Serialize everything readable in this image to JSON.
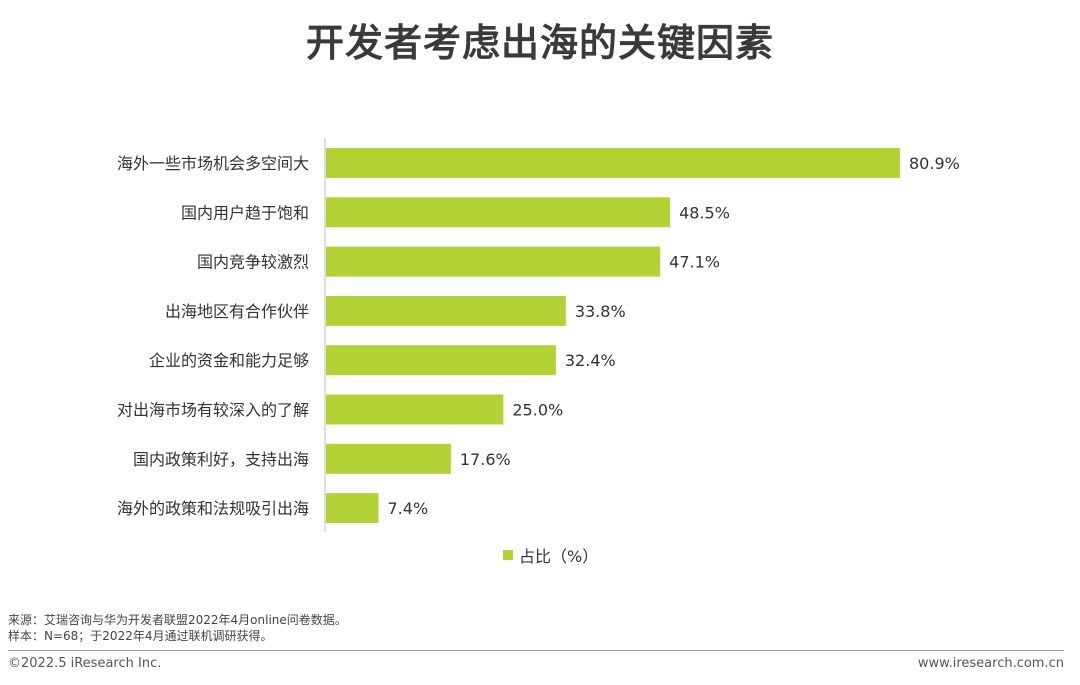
{
  "page": {
    "title": "开发者考虑出海的关键因素",
    "notes": {
      "source": "来源：艾瑞咨询与华为开发者联盟2022年4月online问卷数据。",
      "sample": "样本：N=68；于2022年4月通过联机调研获得。"
    },
    "footer": {
      "copyright": "©2022.5 iResearch Inc.",
      "website": "www.iresearch.com.cn"
    }
  },
  "chart_data": {
    "type": "bar",
    "orientation": "horizontal",
    "title": "开发者考虑出海的关键因素",
    "categories": [
      "海外一些市场机会多空间大",
      "国内用户趋于饱和",
      "国内竞争较激烈",
      "出海地区有合作伙伴",
      "企业的资金和能力足够",
      "对出海市场有较深入的了解",
      "国内政策利好，支持出海",
      "海外的政策和法规吸引出海"
    ],
    "series": [
      {
        "name": "占比（%）",
        "values": [
          80.9,
          48.5,
          47.1,
          33.8,
          32.4,
          25.0,
          17.6,
          7.4
        ],
        "labels": [
          "80.9%",
          "48.5%",
          "47.1%",
          "33.8%",
          "32.4%",
          "25.0%",
          "17.6%",
          "7.4%"
        ]
      }
    ],
    "legend_position": "bottom",
    "grid": false,
    "colors": {
      "bar": "#b2d235",
      "axis": "#bfbfbf"
    }
  }
}
